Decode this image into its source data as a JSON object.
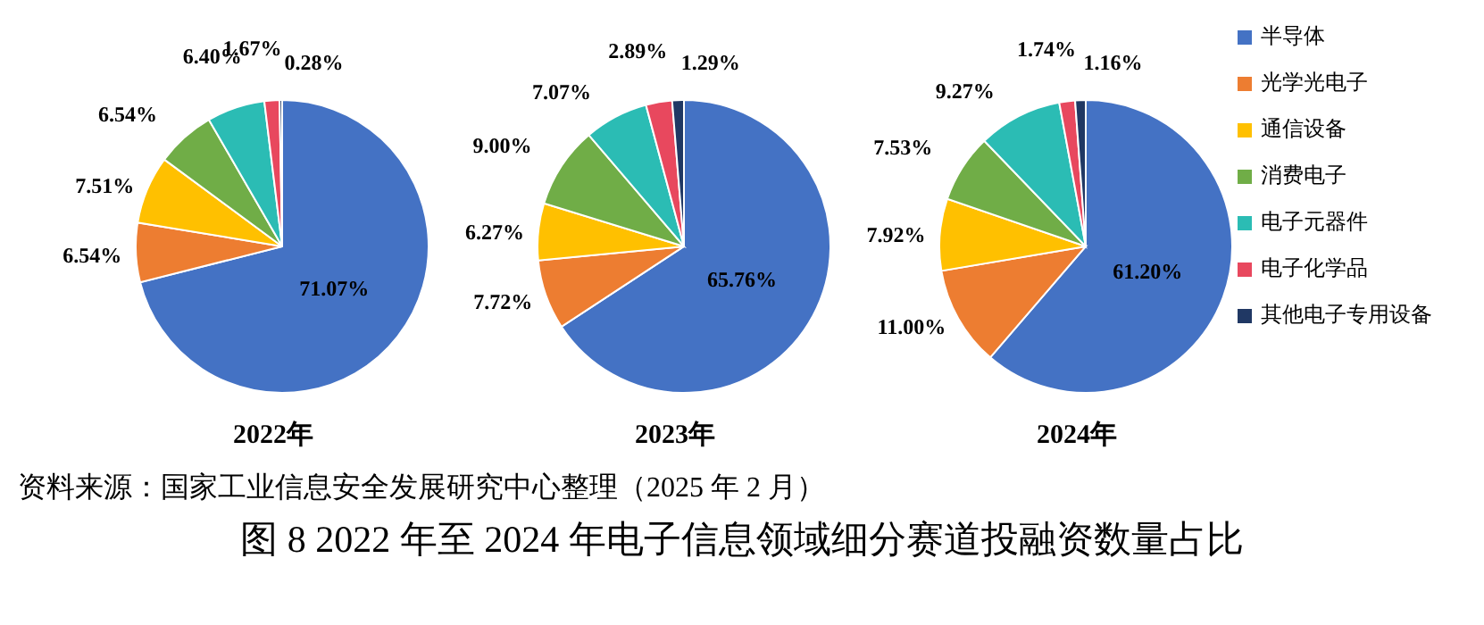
{
  "chart_data": [
    {
      "type": "pie",
      "title": "2022年",
      "categories": [
        null,
        null,
        null,
        null,
        null,
        null,
        null
      ],
      "values": [
        71.07,
        6.54,
        7.51,
        6.54,
        6.4,
        1.67,
        0.28
      ],
      "value_labels": [
        "71.07%",
        "6.54%",
        "7.51%",
        "6.54%",
        "6.40%",
        "1.67%",
        "0.28%"
      ],
      "colors": [
        "#4472c4",
        "#ed7d31",
        "#ffc000",
        "#70ad47",
        "#2bbcb4",
        "#e8485e",
        "#203864"
      ],
      "legend": false,
      "annotations": [
        "资料来源：国家工业信息安全发展研究中心整理（2025 年 2 月）",
        "图  8 2022 年至 2024 年电子信息领域细分赛道投融资数量占比"
      ]
    },
    {
      "type": "pie",
      "title": "2023年",
      "categories": [
        null,
        null,
        null,
        null,
        null,
        null,
        null
      ],
      "values": [
        65.76,
        7.72,
        6.27,
        9.0,
        7.07,
        2.89,
        1.29
      ],
      "value_labels": [
        "65.76%",
        "7.72%",
        "6.27%",
        "9.00%",
        "7.07%",
        "2.89%",
        "1.29%"
      ],
      "colors": [
        "#4472c4",
        "#ed7d31",
        "#ffc000",
        "#70ad47",
        "#2bbcb4",
        "#e8485e",
        "#203864"
      ],
      "legend": false
    },
    {
      "type": "pie",
      "title": "2024年",
      "categories": [
        "半导体",
        "光学光电子",
        "通信设备",
        "消费电子",
        "电子元器件",
        "电子化学品",
        "其他电子专用设备"
      ],
      "values": [
        61.2,
        11.0,
        7.92,
        7.53,
        9.27,
        1.74,
        1.16
      ],
      "value_labels": [
        "61.20%",
        "11.00%",
        "7.92%",
        "7.53%",
        "9.27%",
        "1.74%",
        "1.16%"
      ],
      "colors": [
        "#4472c4",
        "#ed7d31",
        "#ffc000",
        "#70ad47",
        "#2bbcb4",
        "#e8485e",
        "#203864"
      ],
      "legend": "right"
    }
  ]
}
